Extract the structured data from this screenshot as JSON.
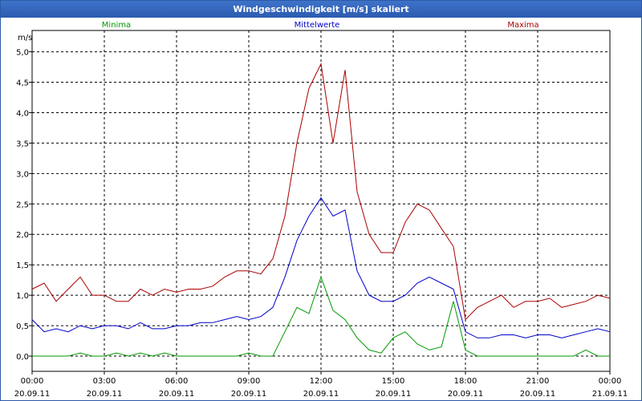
{
  "window": {
    "title": "Windgeschwindigkeit [m/s] skaliert"
  },
  "chart_data": {
    "type": "line",
    "title": "Windgeschwindigkeit [m/s] skaliert",
    "ylabel": "m/s",
    "ylim": [
      -0.25,
      5.35
    ],
    "yticks": [
      "0,0",
      "0,5",
      "1,0",
      "1,5",
      "2,0",
      "2,5",
      "3,0",
      "3,5",
      "4,0",
      "4,5",
      "5,0"
    ],
    "ytick_values": [
      0,
      0.5,
      1,
      1.5,
      2,
      2.5,
      3,
      3.5,
      4,
      4.5,
      5
    ],
    "xlim": [
      0,
      24
    ],
    "xticks": [
      {
        "time": "00:00",
        "date": "20.09.11"
      },
      {
        "time": "03:00",
        "date": "20.09.11"
      },
      {
        "time": "06:00",
        "date": "20.09.11"
      },
      {
        "time": "09:00",
        "date": "20.09.11"
      },
      {
        "time": "12:00",
        "date": "20.09.11"
      },
      {
        "time": "15:00",
        "date": "20.09.11"
      },
      {
        "time": "18:00",
        "date": "20.09.11"
      },
      {
        "time": "21:00",
        "date": "20.09.11"
      },
      {
        "time": "00:00",
        "date": "21.09.11"
      }
    ],
    "grid": true,
    "x": [
      0,
      0.5,
      1,
      1.5,
      2,
      2.5,
      3,
      3.5,
      4,
      4.5,
      5,
      5.5,
      6,
      6.5,
      7,
      7.5,
      8,
      8.5,
      9,
      9.5,
      10,
      10.5,
      11,
      11.5,
      12,
      12.5,
      13,
      13.5,
      14,
      14.5,
      15,
      15.5,
      16,
      16.5,
      17,
      17.5,
      18,
      18.5,
      19,
      19.5,
      20,
      20.5,
      21,
      21.5,
      22,
      22.5,
      23,
      23.5,
      24
    ],
    "series": [
      {
        "name": "Minima",
        "color": "#009900",
        "values": [
          0,
          0,
          0,
          0,
          0.05,
          0,
          0,
          0.05,
          0,
          0.05,
          0,
          0.05,
          0,
          0,
          0,
          0,
          0,
          0,
          0.05,
          0,
          0,
          0.4,
          0.8,
          0.7,
          1.3,
          0.75,
          0.6,
          0.3,
          0.1,
          0.05,
          0.3,
          0.4,
          0.2,
          0.1,
          0.15,
          0.9,
          0.1,
          0,
          0,
          0,
          0,
          0,
          0,
          0,
          0,
          0,
          0.1,
          0,
          0
        ]
      },
      {
        "name": "Mittelwerte",
        "color": "#0000cc",
        "values": [
          0.6,
          0.4,
          0.45,
          0.4,
          0.5,
          0.45,
          0.5,
          0.5,
          0.45,
          0.55,
          0.45,
          0.45,
          0.5,
          0.5,
          0.55,
          0.55,
          0.6,
          0.65,
          0.6,
          0.65,
          0.8,
          1.3,
          1.9,
          2.3,
          2.6,
          2.3,
          2.4,
          1.4,
          1.0,
          0.9,
          0.9,
          1.0,
          1.2,
          1.3,
          1.2,
          1.1,
          0.4,
          0.3,
          0.3,
          0.35,
          0.35,
          0.3,
          0.35,
          0.35,
          0.3,
          0.35,
          0.4,
          0.45,
          0.4
        ]
      },
      {
        "name": "Maxima",
        "color": "#aa0000",
        "values": [
          1.1,
          1.2,
          0.9,
          1.1,
          1.3,
          1.0,
          1.0,
          0.9,
          0.9,
          1.1,
          1.0,
          1.1,
          1.05,
          1.1,
          1.1,
          1.15,
          1.3,
          1.4,
          1.4,
          1.35,
          1.6,
          2.3,
          3.5,
          4.4,
          4.8,
          3.5,
          4.7,
          2.7,
          2.0,
          1.7,
          1.7,
          2.2,
          2.5,
          2.4,
          2.1,
          1.8,
          0.6,
          0.8,
          0.9,
          1.0,
          0.8,
          0.9,
          0.9,
          0.95,
          0.8,
          0.85,
          0.9,
          1.0,
          0.95
        ]
      }
    ]
  }
}
